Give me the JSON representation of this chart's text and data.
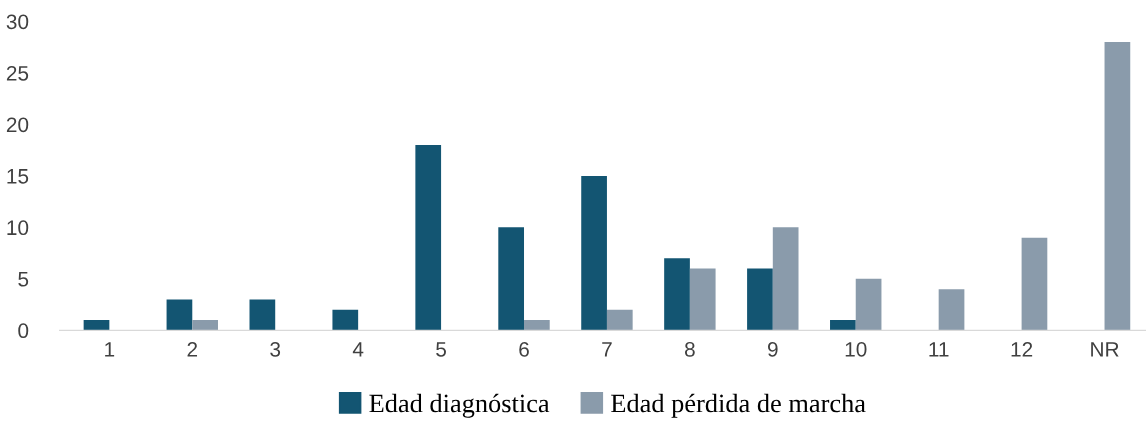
{
  "chart_data": {
    "type": "bar",
    "categories": [
      "1",
      "2",
      "3",
      "4",
      "5",
      "6",
      "7",
      "8",
      "9",
      "10",
      "11",
      "12",
      "NR"
    ],
    "series": [
      {
        "name": "Edad diagnóstica",
        "color": "#135572",
        "values": [
          1,
          3,
          3,
          2,
          18,
          10,
          15,
          7,
          6,
          1,
          0,
          0,
          0
        ]
      },
      {
        "name": "Edad pérdida de marcha",
        "color": "#8a9bab",
        "values": [
          0,
          1,
          0,
          0,
          0,
          1,
          2,
          6,
          10,
          5,
          4,
          9,
          28
        ]
      }
    ],
    "ylim": [
      0,
      30
    ],
    "yticks": [
      0,
      5,
      10,
      15,
      20,
      25,
      30
    ],
    "grid": false,
    "legend": "bottom"
  }
}
